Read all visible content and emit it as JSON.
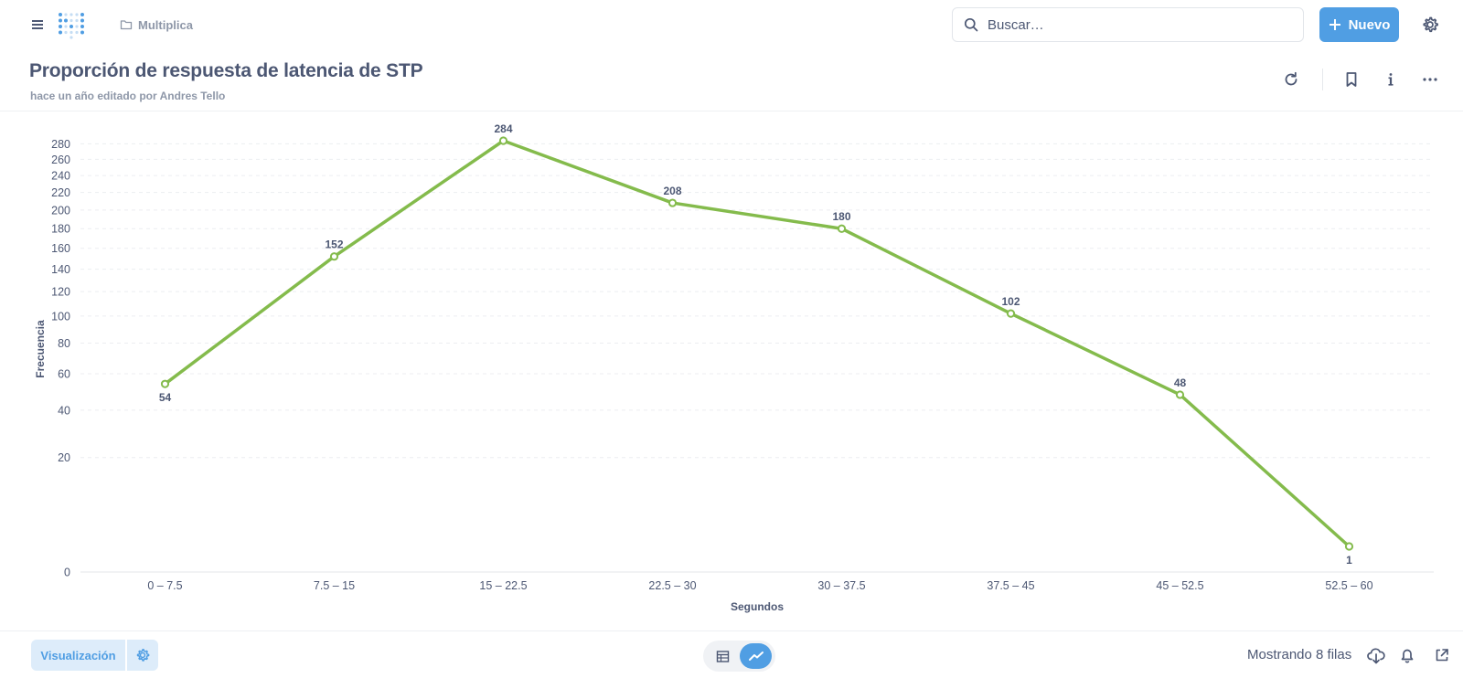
{
  "nav": {
    "breadcrumb": "Multiplica",
    "search_placeholder": "Buscar…",
    "new_label": "Nuevo"
  },
  "question": {
    "title": "Proporción de respuesta de latencia de STP",
    "subtitle": "hace un año editado por Andres Tello"
  },
  "colors": {
    "accent": "#509ee3",
    "series": "#84bb4c",
    "text": "#4c5773"
  },
  "icons": {
    "menu": "hamburger-icon",
    "logo": "metabase-logo",
    "folder": "folder-icon",
    "search": "search-icon",
    "new": "plus-icon",
    "settings": "gear-icon",
    "refresh": "refresh-icon",
    "bookmark": "bookmark-icon",
    "info": "info-icon",
    "more": "ellipsis-icon",
    "table": "table-icon",
    "line": "line-chart-icon",
    "download": "cloud-download-icon",
    "alert": "bell-icon",
    "share": "external-link-icon"
  },
  "chart_data": {
    "type": "line",
    "categories": [
      "0 – 7.5",
      "7.5 – 15",
      "15 – 22.5",
      "22.5 – 30",
      "30 – 37.5",
      "37.5 – 45",
      "45 – 52.5",
      "52.5 – 60"
    ],
    "series": [
      {
        "values": [
          54,
          152,
          284,
          208,
          180,
          102,
          48,
          1
        ]
      }
    ],
    "xlabel": "Segundos",
    "ylabel": "Frecuencia",
    "y_scale": "pow",
    "y_ticks": [
      0,
      20,
      40,
      60,
      80,
      100,
      120,
      140,
      160,
      180,
      200,
      220,
      240,
      260,
      280
    ],
    "ylim": [
      0,
      284
    ],
    "grid": true,
    "legend": "none"
  },
  "footer": {
    "viz_label": "Visualización",
    "row_count": "Mostrando 8 filas"
  }
}
